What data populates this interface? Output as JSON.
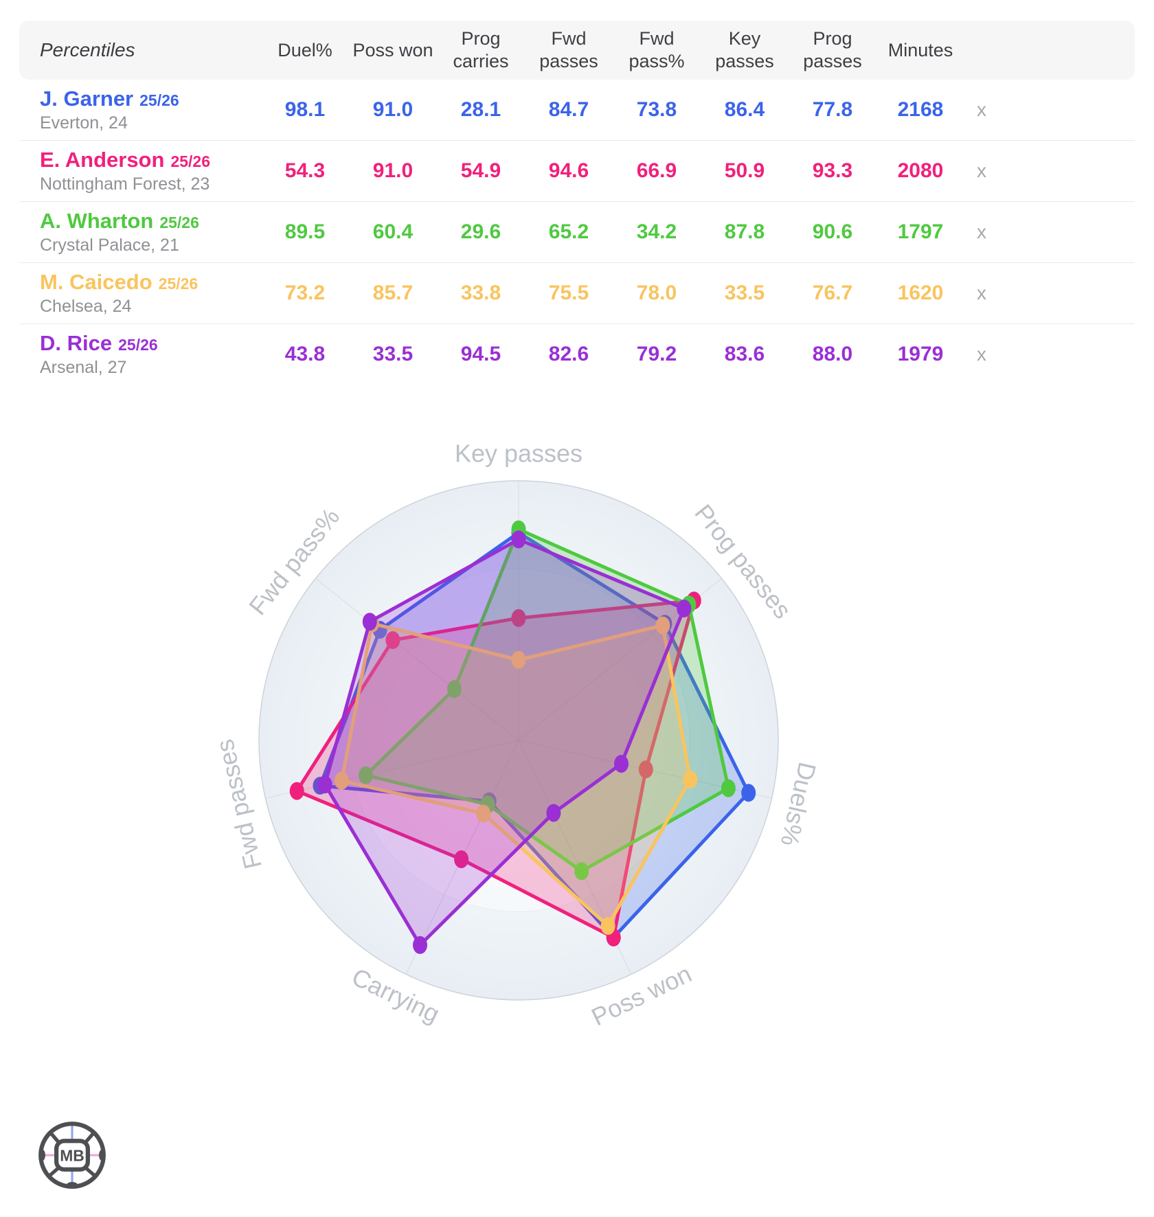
{
  "table": {
    "percentiles_label": "Percentiles",
    "columns": [
      "Duel%",
      "Poss won",
      "Prog carries",
      "Fwd passes",
      "Fwd pass%",
      "Key passes",
      "Prog passes",
      "Minutes"
    ],
    "remove_label": "x",
    "players": [
      {
        "name": "J. Garner",
        "season": "25/26",
        "subtitle": "Everton, 24",
        "color": "#3b63ea",
        "values": [
          "98.1",
          "91.0",
          "28.1",
          "84.7",
          "73.8",
          "86.4",
          "77.8"
        ],
        "minutes": "2168"
      },
      {
        "name": "E. Anderson",
        "season": "25/26",
        "subtitle": "Nottingham Forest, 23",
        "color": "#f1207c",
        "values": [
          "54.3",
          "91.0",
          "54.9",
          "94.6",
          "66.9",
          "50.9",
          "93.3"
        ],
        "minutes": "2080"
      },
      {
        "name": "A. Wharton",
        "season": "25/26",
        "subtitle": "Crystal Palace, 21",
        "color": "#4fc940",
        "values": [
          "89.5",
          "60.4",
          "29.6",
          "65.2",
          "34.2",
          "87.8",
          "90.6"
        ],
        "minutes": "1797"
      },
      {
        "name": "M. Caicedo",
        "season": "25/26",
        "subtitle": "Chelsea, 24",
        "color": "#f9c45e",
        "values": [
          "73.2",
          "85.7",
          "33.8",
          "75.5",
          "78.0",
          "33.5",
          "76.7"
        ],
        "minutes": "1620"
      },
      {
        "name": "D. Rice",
        "season": "25/26",
        "subtitle": "Arsenal, 27",
        "color": "#9a2fd4",
        "values": [
          "43.8",
          "33.5",
          "94.5",
          "82.6",
          "79.2",
          "83.6",
          "88.0"
        ],
        "minutes": "1979"
      }
    ]
  },
  "chart_data": {
    "type": "radar",
    "title": "",
    "axes": [
      "Key passes",
      "Prog passes",
      "Duels%",
      "Poss won",
      "Carrying",
      "Fwd passes",
      "Fwd pass%"
    ],
    "scale_min": 0,
    "scale_max": 100,
    "grid": "circular-bands-with-spokes",
    "legend_position": "none",
    "series": [
      {
        "name": "J. Garner",
        "color": "#3b63ea",
        "values": [
          86.4,
          77.8,
          98.1,
          91.0,
          28.1,
          84.7,
          73.8
        ]
      },
      {
        "name": "E. Anderson",
        "color": "#f1207c",
        "values": [
          50.9,
          93.3,
          54.3,
          91.0,
          54.9,
          94.6,
          66.9
        ]
      },
      {
        "name": "A. Wharton",
        "color": "#4fc940",
        "values": [
          87.8,
          90.6,
          89.5,
          60.4,
          29.6,
          65.2,
          34.2
        ]
      },
      {
        "name": "M. Caicedo",
        "color": "#f9c45e",
        "values": [
          33.5,
          76.7,
          73.2,
          85.7,
          33.8,
          75.5,
          78.0
        ]
      },
      {
        "name": "D. Rice",
        "color": "#9a2fd4",
        "values": [
          83.6,
          88.0,
          43.8,
          33.5,
          94.5,
          82.6,
          79.2
        ]
      }
    ],
    "fill_opacity": 0.25,
    "axis_label_color": "#bcc1c8",
    "ring_fill_edge": "#e8eef4",
    "ring_stroke": "#ccd3d9"
  },
  "logo": {
    "text": "MB"
  }
}
